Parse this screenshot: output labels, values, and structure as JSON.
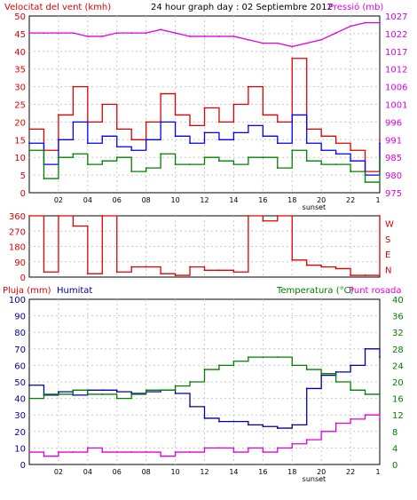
{
  "header": {
    "left_label": "Velocitat del vent (kmh)",
    "title": "24 hour graph day : 02 Septiembre 2012",
    "right_label": "Pressió (mb)"
  },
  "lower_header": {
    "left_label_1": "Pluja (mm)",
    "left_label_2": "Humitat",
    "right_label_1": "Temperatura (°C)",
    "right_label_2": "Punt rosada"
  },
  "x_ticks": [
    "02",
    "04",
    "06",
    "08",
    "10",
    "12",
    "14",
    "16",
    "18",
    "20",
    "22",
    "1"
  ],
  "sunset_label": "sunset",
  "colors": {
    "wind_avg": "#e00000",
    "wind_gust": "#0000ff",
    "wind_min": "#008000",
    "pressure": "#e000e0",
    "direction": "#e00000",
    "humidity": "#0000a0",
    "temperature": "#008000",
    "dewpoint": "#e000e0",
    "grid": "#c8c8c8",
    "axis_text_left_top": "#e00000",
    "axis_text_right_top": "#e000e0",
    "axis_text_left_bottom": "#0000a0",
    "axis_text_right_bottom": "#008000"
  },
  "chart_data": [
    {
      "type": "line",
      "name": "wind_pressure",
      "left_axis": {
        "label": "Velocitat del vent (kmh)",
        "ticks": [
          0,
          5,
          10,
          15,
          20,
          25,
          30,
          35,
          40,
          45,
          50
        ],
        "ylim": [
          0,
          50
        ]
      },
      "right_axis": {
        "label": "Pressió (mb)",
        "ticks": [
          975,
          980,
          985,
          991,
          996,
          1001,
          1006,
          1012,
          1017,
          1022,
          1027
        ],
        "ylim": [
          975,
          1027
        ]
      },
      "x_hours": [
        0,
        1,
        2,
        3,
        4,
        5,
        6,
        7,
        8,
        9,
        10,
        11,
        12,
        13,
        14,
        15,
        16,
        17,
        18,
        19,
        20,
        21,
        22,
        23,
        24
      ],
      "series": [
        {
          "key": "wind_avg",
          "axis": "left",
          "values": [
            18,
            12,
            22,
            30,
            20,
            25,
            18,
            15,
            20,
            28,
            22,
            19,
            24,
            20,
            25,
            30,
            22,
            20,
            38,
            18,
            16,
            14,
            12,
            6,
            15
          ]
        },
        {
          "key": "wind_gust",
          "axis": "left",
          "values": [
            14,
            8,
            15,
            20,
            14,
            16,
            13,
            12,
            15,
            20,
            16,
            14,
            17,
            15,
            17,
            19,
            16,
            14,
            22,
            14,
            12,
            11,
            9,
            5,
            14
          ]
        },
        {
          "key": "wind_min",
          "axis": "left",
          "values": [
            12,
            4,
            10,
            11,
            8,
            9,
            10,
            6,
            7,
            11,
            8,
            8,
            10,
            9,
            8,
            10,
            10,
            7,
            12,
            9,
            8,
            8,
            6,
            3,
            10
          ]
        },
        {
          "key": "pressure",
          "axis": "right",
          "values": [
            1022,
            1022,
            1022,
            1022,
            1021,
            1021,
            1022,
            1022,
            1022,
            1023,
            1022,
            1021,
            1021,
            1021,
            1021,
            1020,
            1019,
            1019,
            1018,
            1019,
            1020,
            1022,
            1024,
            1025,
            1025
          ]
        }
      ]
    },
    {
      "type": "line",
      "name": "wind_direction",
      "left_axis": {
        "ticks": [
          0,
          90,
          180,
          270,
          360
        ],
        "ylim": [
          0,
          360
        ]
      },
      "right_axis": {
        "ticks": [
          "W",
          "S",
          "E",
          "N"
        ]
      },
      "series": [
        {
          "key": "direction",
          "values": [
            360,
            30,
            360,
            300,
            20,
            360,
            30,
            60,
            60,
            20,
            10,
            60,
            40,
            40,
            30,
            360,
            330,
            360,
            100,
            70,
            60,
            50,
            10,
            10,
            360
          ]
        }
      ]
    },
    {
      "type": "line",
      "name": "rain_humidity_temp",
      "left_axis": {
        "label": "Pluja (mm) / Humitat",
        "ticks": [
          0,
          10,
          20,
          30,
          40,
          50,
          60,
          70,
          80,
          90,
          100
        ],
        "ylim": [
          0,
          100
        ]
      },
      "right_axis": {
        "label": "Temperatura (°C) / Punt rosada",
        "ticks": [
          0,
          4,
          8,
          12,
          16,
          20,
          24,
          28,
          32,
          36,
          40
        ],
        "ylim": [
          0,
          40
        ]
      },
      "series": [
        {
          "key": "humidity",
          "axis": "left",
          "values": [
            48,
            42,
            44,
            42,
            45,
            45,
            44,
            43,
            44,
            45,
            43,
            35,
            28,
            26,
            26,
            24,
            23,
            22,
            24,
            46,
            54,
            56,
            60,
            70,
            65
          ]
        },
        {
          "key": "temperature",
          "axis": "right",
          "values": [
            16,
            17,
            17,
            18,
            17,
            17,
            16,
            17,
            18,
            18,
            19,
            20,
            23,
            24,
            25,
            26,
            26,
            26,
            24,
            23,
            22,
            20,
            18,
            17,
            17
          ]
        },
        {
          "key": "dewpoint",
          "axis": "right",
          "values": [
            3,
            2,
            3,
            3,
            4,
            3,
            3,
            3,
            3,
            2,
            3,
            3,
            4,
            4,
            3,
            4,
            3,
            4,
            5,
            6,
            8,
            10,
            11,
            12,
            11
          ]
        }
      ]
    }
  ]
}
